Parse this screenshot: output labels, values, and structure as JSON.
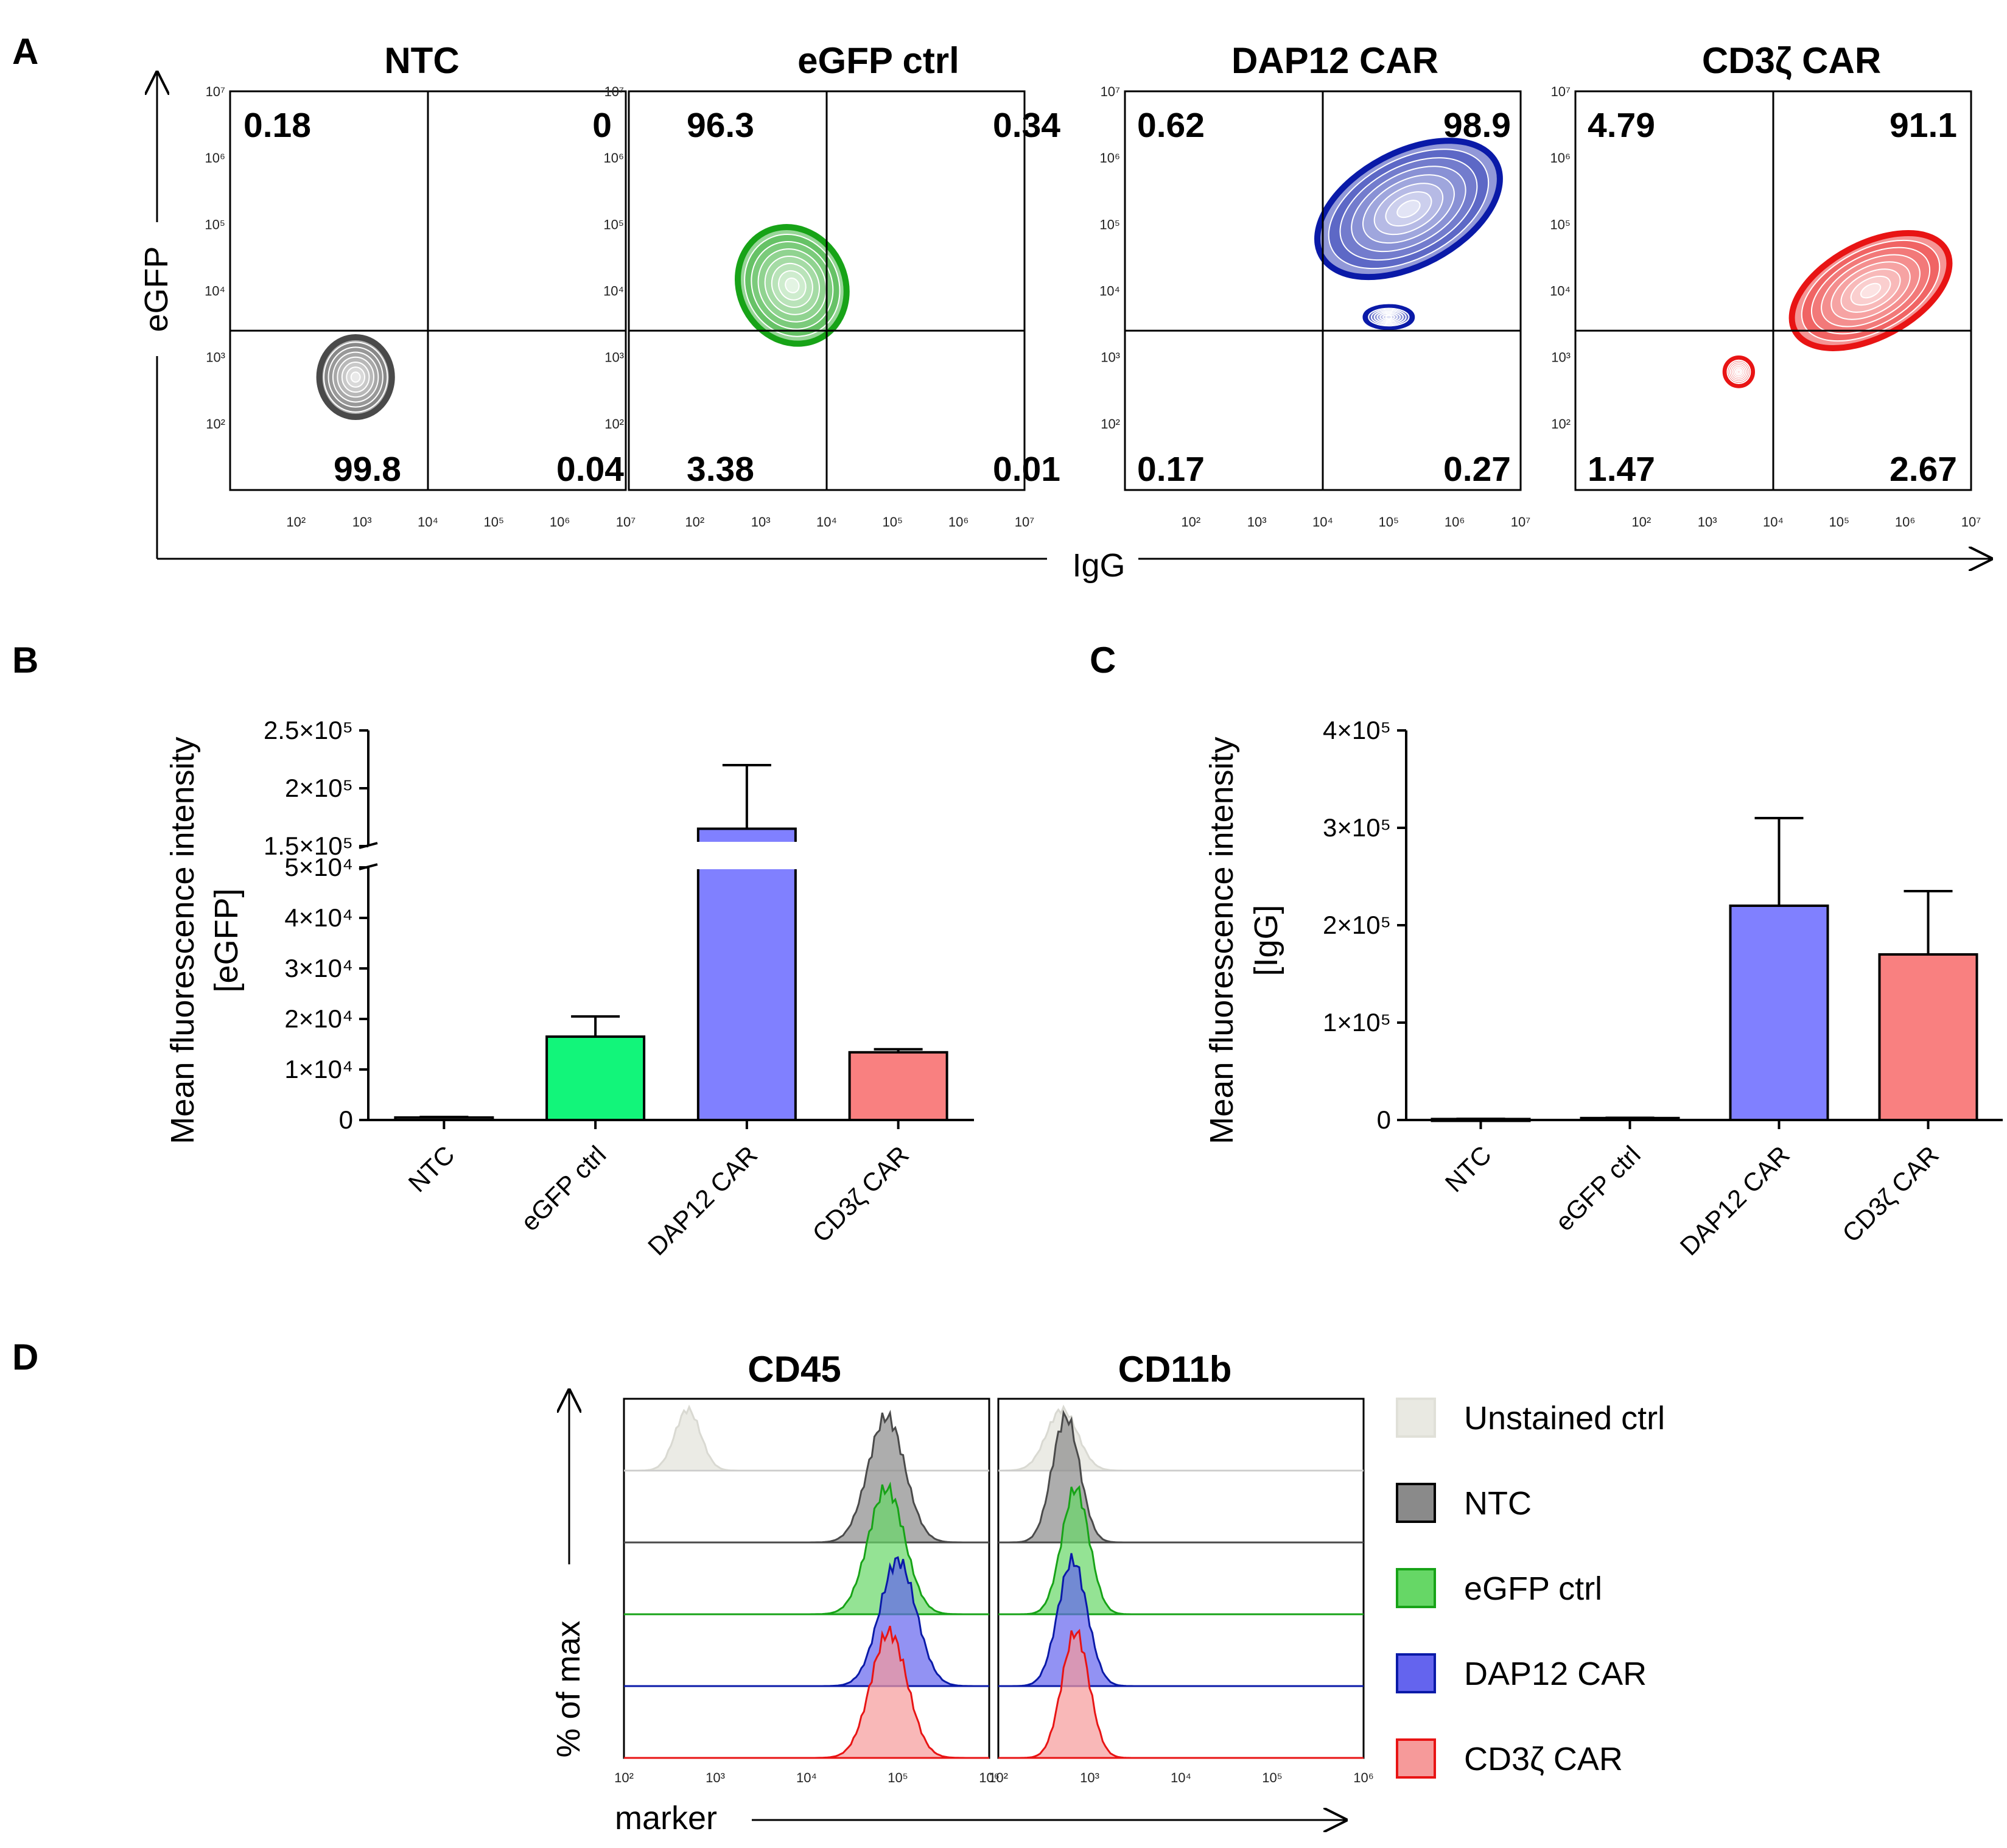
{
  "colors": {
    "NTC": "#4a4a4a",
    "eGFP ctrl": "#17a317",
    "DAP12 CAR": "#0a1aa8",
    "CD3ζ CAR": "#e81414",
    "bar_NTC": "#c8c8c8",
    "bar_eGFP ctrl": "#12f57a",
    "bar_DAP12 CAR": "#8080ff",
    "bar_CD3ζ CAR": "#f98080",
    "hist_Unstained ctrl": "#e9e9e2",
    "hist_NTC": "#8a8a8a",
    "hist_eGFP ctrl": "#66d766",
    "hist_DAP12 CAR": "#6464ee",
    "hist_CD3ζ CAR": "#f69a9a"
  },
  "chart_data": [
    {
      "panel": "A",
      "type": "contour",
      "xlabel": "IgG",
      "ylabel": "eGFP",
      "log_scale": true,
      "tick_labels": [
        "10²",
        "10³",
        "10⁴",
        "10⁵",
        "10⁶",
        "10⁷"
      ],
      "xlim": [
        10,
        10000000
      ],
      "ylim": [
        10,
        10000000
      ],
      "gate": {
        "x": 10000,
        "y": 2500
      },
      "plots": [
        {
          "title": "NTC",
          "color_key": "NTC",
          "quadrants": {
            "upper_left": "0.18",
            "upper_right": "0",
            "lower_left": "99.8",
            "lower_right": "0.04"
          },
          "populations": [
            {
              "x": 800,
              "y": 500,
              "spread_x": 0.55,
              "spread_y": 0.6
            }
          ]
        },
        {
          "title": "eGFP ctrl",
          "color_key": "eGFP ctrl",
          "quadrants": {
            "upper_left": "96.3",
            "upper_right": "0.34",
            "lower_left": "3.38",
            "lower_right": "0.01"
          },
          "populations": [
            {
              "x": 3000,
              "y": 12000,
              "spread_x": 0.8,
              "spread_y": 0.9
            }
          ]
        },
        {
          "title": "DAP12 CAR",
          "color_key": "DAP12 CAR",
          "quadrants": {
            "upper_left": "0.62",
            "upper_right": "98.9",
            "lower_left": "0.17",
            "lower_right": "0.27"
          },
          "populations": [
            {
              "x": 200000,
              "y": 170000,
              "spread_x": 1.5,
              "spread_y": 0.85
            },
            {
              "x": 100000,
              "y": 4000,
              "spread_x": 0.35,
              "spread_y": 0.15
            }
          ]
        },
        {
          "title": "CD3ζ CAR",
          "color_key": "CD3ζ CAR",
          "quadrants": {
            "upper_left": "4.79",
            "upper_right": "91.1",
            "lower_left": "1.47",
            "lower_right": "2.67"
          },
          "populations": [
            {
              "x": 300000,
              "y": 10000,
              "spread_x": 1.3,
              "spread_y": 0.7
            },
            {
              "x": 3000,
              "y": 600,
              "spread_x": 0.2,
              "spread_y": 0.2
            }
          ]
        }
      ]
    },
    {
      "panel": "B",
      "type": "bar",
      "ylabel": "Mean fluorescence intensity",
      "ylabel2": "[eGFP]",
      "categories": [
        "NTC",
        "eGFP ctrl",
        "DAP12 CAR",
        "CD3ζ CAR"
      ],
      "values": [
        500,
        16500,
        165000,
        13400
      ],
      "errors": [
        100,
        4000,
        55000,
        600
      ],
      "y_broken_axis": {
        "lower": [
          0,
          50000
        ],
        "upper": [
          150000,
          250000
        ]
      },
      "yticks_lower": [
        {
          "v": 0,
          "label": "0"
        },
        {
          "v": 10000,
          "label": "1×10⁴"
        },
        {
          "v": 20000,
          "label": "2×10⁴"
        },
        {
          "v": 30000,
          "label": "3×10⁴"
        },
        {
          "v": 40000,
          "label": "4×10⁴"
        },
        {
          "v": 50000,
          "label": "5×10⁴"
        }
      ],
      "yticks_upper": [
        {
          "v": 150000,
          "label": "1.5×10⁵"
        },
        {
          "v": 200000,
          "label": "2×10⁵"
        },
        {
          "v": 250000,
          "label": "2.5×10⁵"
        }
      ]
    },
    {
      "panel": "C",
      "type": "bar",
      "ylabel": "Mean fluorescence intensity",
      "ylabel2": "[IgG]",
      "categories": [
        "NTC",
        "eGFP ctrl",
        "DAP12 CAR",
        "CD3ζ CAR"
      ],
      "values": [
        1000,
        2000,
        220000,
        170000
      ],
      "errors": [
        200,
        300,
        90000,
        65000
      ],
      "ylim": [
        0,
        400000
      ],
      "yticks": [
        {
          "v": 0,
          "label": "0"
        },
        {
          "v": 100000,
          "label": "1×10⁵"
        },
        {
          "v": 200000,
          "label": "2×10⁵"
        },
        {
          "v": 300000,
          "label": "3×10⁵"
        },
        {
          "v": 400000,
          "label": "4×10⁵"
        }
      ]
    },
    {
      "panel": "D",
      "type": "histogram",
      "xlabel": "marker",
      "ylabel": "% of max",
      "log_scale": true,
      "tick_labels": [
        "10²",
        "10³",
        "10⁴",
        "10⁵",
        "10⁶"
      ],
      "xlim": [
        100,
        1000000
      ],
      "series": [
        "Unstained ctrl",
        "NTC",
        "eGFP ctrl",
        "DAP12 CAR",
        "CD3ζ CAR"
      ],
      "plots": [
        {
          "title": "CD45",
          "peaks": [
            {
              "series": "Unstained ctrl",
              "peak": 500,
              "width": 0.14
            },
            {
              "series": "NTC",
              "peak": 75000,
              "width": 0.2
            },
            {
              "series": "eGFP ctrl",
              "peak": 75000,
              "width": 0.2
            },
            {
              "series": "DAP12 CAR",
              "peak": 100000,
              "width": 0.2
            },
            {
              "series": "CD3ζ CAR",
              "peak": 80000,
              "width": 0.2
            }
          ]
        },
        {
          "title": "CD11b",
          "peaks": [
            {
              "series": "Unstained ctrl",
              "peak": 500,
              "width": 0.17
            },
            {
              "series": "NTC",
              "peak": 550,
              "width": 0.15
            },
            {
              "series": "eGFP ctrl",
              "peak": 700,
              "width": 0.15
            },
            {
              "series": "DAP12 CAR",
              "peak": 650,
              "width": 0.16
            },
            {
              "series": "CD3ζ CAR",
              "peak": 700,
              "width": 0.15
            }
          ]
        }
      ]
    }
  ],
  "panel_labels": [
    "A",
    "B",
    "C",
    "D"
  ]
}
